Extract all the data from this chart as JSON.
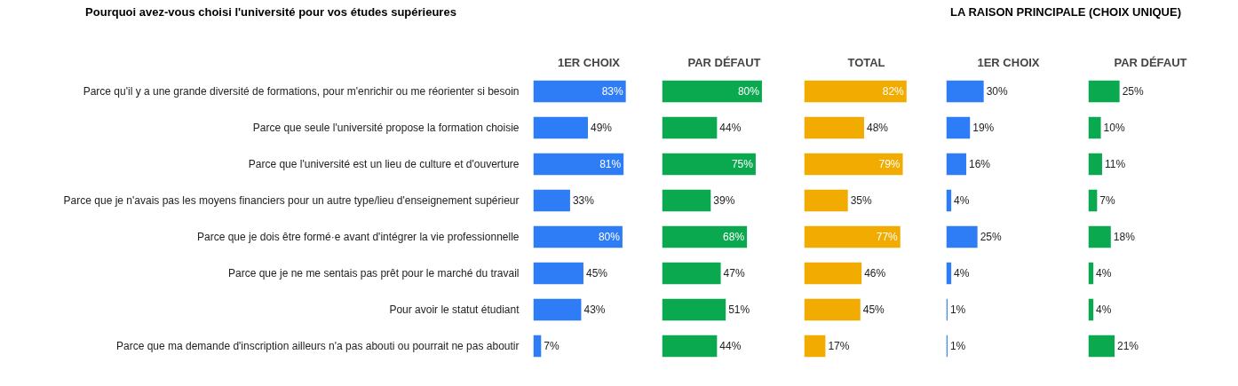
{
  "chart_data": [
    {
      "type": "bar",
      "orientation": "horizontal",
      "title": "Pourquoi avez-vous choisi l'université pour vos études supérieures",
      "subtitle": "1ER CHOIX",
      "categories": [
        "Parce qu'il y a une grande diversité de formations, pour m'enrichir ou me réorienter si besoin",
        "Parce que seule l'université propose la formation choisie",
        "Parce que l'université est un lieu de culture et d'ouverture",
        "Parce que je n'avais pas les moyens financiers pour un autre type/lieu d'enseignement supérieur",
        "Parce que je dois être formé·e avant d'intégrer la vie professionnelle",
        "Parce que je ne me sentais pas prêt pour le marché du travail",
        "Pour avoir le statut étudiant",
        "Parce que ma demande d'inscription ailleurs n'a pas abouti ou pourrait ne pas aboutir"
      ],
      "values": [
        83,
        49,
        81,
        33,
        80,
        45,
        43,
        7
      ],
      "value_labels": [
        "83%",
        "49%",
        "81%",
        "33%",
        "80%",
        "45%",
        "43%",
        "7%"
      ],
      "color": "#2f7df6",
      "tick_labels": "y"
    },
    {
      "type": "bar",
      "orientation": "horizontal",
      "title": "PAR DÉFAUT",
      "categories": [
        null,
        null,
        null,
        null,
        null,
        null,
        null,
        null
      ],
      "values": [
        80,
        44,
        75,
        39,
        68,
        47,
        51,
        44
      ],
      "value_labels": [
        "80%",
        "44%",
        "75%",
        "39%",
        "68%",
        "47%",
        "51%",
        "44%"
      ],
      "color": "#0ba94f"
    },
    {
      "type": "bar",
      "orientation": "horizontal",
      "title": "TOTAL",
      "categories": [
        null,
        null,
        null,
        null,
        null,
        null,
        null,
        null
      ],
      "values": [
        82,
        48,
        79,
        35,
        77,
        46,
        45,
        17
      ],
      "value_labels": [
        "82%",
        "48%",
        "79%",
        "35%",
        "77%",
        "46%",
        "45%",
        "17%"
      ],
      "color": "#f2ab00"
    },
    {
      "type": "bar",
      "orientation": "horizontal",
      "title": "1ER CHOIX",
      "subtitle": "LA RAISON PRINCIPALE (CHOIX UNIQUE)",
      "categories": [
        null,
        null,
        null,
        null,
        null,
        null,
        null,
        null
      ],
      "values": [
        30,
        19,
        16,
        4,
        25,
        4,
        1,
        1
      ],
      "value_labels": [
        "30%",
        "19%",
        "16%",
        "4%",
        "25%",
        "4%",
        "1%",
        "1%"
      ],
      "color": "#2f7df6"
    },
    {
      "type": "bar",
      "orientation": "horizontal",
      "title": "PAR DÉFAUT",
      "categories": [
        null,
        null,
        null,
        null,
        null,
        null,
        null,
        null
      ],
      "values": [
        25,
        10,
        11,
        7,
        18,
        4,
        4,
        21
      ],
      "value_labels": [
        "25%",
        "10%",
        "11%",
        "7%",
        "18%",
        "4%",
        "4%",
        "21%"
      ],
      "color": "#0ba94f"
    }
  ]
}
